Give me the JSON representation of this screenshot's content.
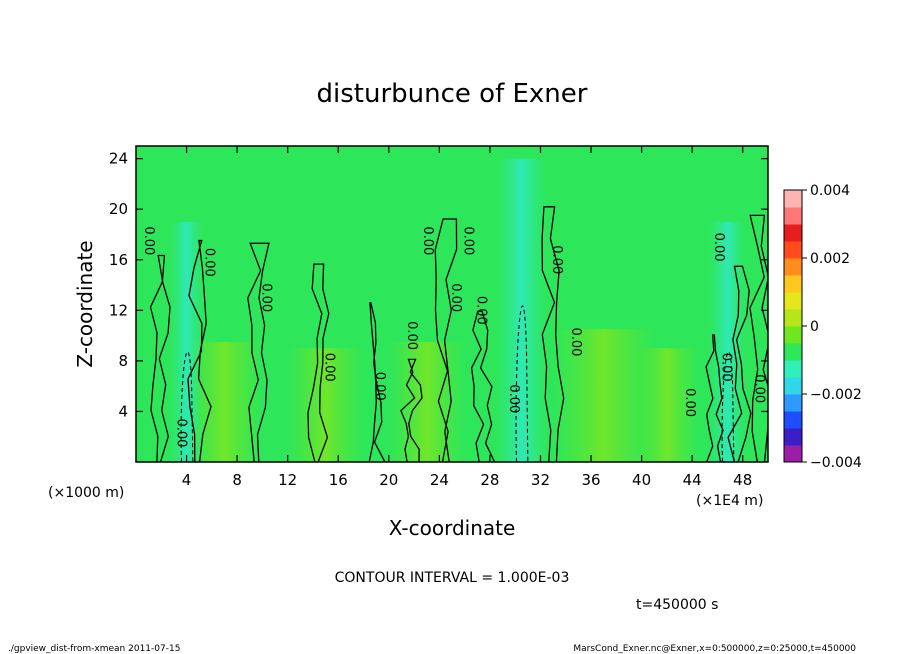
{
  "chart_data": {
    "type": "heatmap",
    "title": "disturbunce of Exner",
    "xlabel": "X-coordinate",
    "ylabel": "Z-coordinate",
    "x_unit_label": "(×1E4 m)",
    "y_unit_label": "(×1000 m)",
    "xlim": [
      0,
      50
    ],
    "ylim": [
      0,
      25
    ],
    "x_ticks": [
      4,
      8,
      12,
      16,
      20,
      24,
      28,
      32,
      36,
      40,
      44,
      48
    ],
    "y_ticks": [
      4,
      8,
      12,
      16,
      20,
      24
    ],
    "colorbar": {
      "range": [
        -0.004,
        0.004
      ],
      "tick_labels": [
        "0.004",
        "0.002",
        "0",
        "−0.002",
        "−0.004"
      ],
      "tick_values": [
        0.004,
        0.002,
        0,
        -0.002,
        -0.004
      ],
      "colors": [
        "#9c1ea6",
        "#3c1ec8",
        "#1e4cff",
        "#2e9aff",
        "#2fd8e8",
        "#30f0b8",
        "#2ee65a",
        "#6ee620",
        "#b4e61a",
        "#e6e61e",
        "#ffc81e",
        "#ff8c1e",
        "#ff4b1e",
        "#e61e1e",
        "#ff7878",
        "#ffb4b4"
      ]
    },
    "contour_interval_text": "CONTOUR INTERVAL = 1.000E-03",
    "contour_label": "0.00",
    "contour_label_positions": [
      {
        "x": 0.7,
        "z": 17.5
      },
      {
        "x": 5.5,
        "z": 15.8
      },
      {
        "x": 10.0,
        "z": 13.0
      },
      {
        "x": 15.0,
        "z": 7.5
      },
      {
        "x": 19.0,
        "z": 6.0
      },
      {
        "x": 21.5,
        "z": 10.0
      },
      {
        "x": 22.8,
        "z": 17.5
      },
      {
        "x": 25.0,
        "z": 13.0
      },
      {
        "x": 26.0,
        "z": 17.5
      },
      {
        "x": 27.0,
        "z": 12.0
      },
      {
        "x": 29.6,
        "z": 5.0
      },
      {
        "x": 33.0,
        "z": 16.0
      },
      {
        "x": 34.5,
        "z": 9.5
      },
      {
        "x": 43.5,
        "z": 4.7
      },
      {
        "x": 45.8,
        "z": 17.0
      },
      {
        "x": 46.4,
        "z": 7.5
      },
      {
        "x": 49.0,
        "z": 5.8
      },
      {
        "x": 3.3,
        "z": 2.3
      }
    ],
    "negative_regions": [
      {
        "x_center": 4.0,
        "x_halfwidth": 1.3,
        "z_max": 19.0
      },
      {
        "x_center": 30.5,
        "x_halfwidth": 2.0,
        "z_max": 24.0
      },
      {
        "x_center": 46.8,
        "x_halfwidth": 1.5,
        "z_max": 19.0
      }
    ],
    "positive_regions": [
      {
        "x_center": 7.0,
        "x_halfwidth": 3.0,
        "z_max": 9.5
      },
      {
        "x_center": 15.0,
        "x_halfwidth": 3.0,
        "z_max": 9.0
      },
      {
        "x_center": 23.0,
        "x_halfwidth": 3.0,
        "z_max": 9.5
      },
      {
        "x_center": 37.0,
        "x_halfwidth": 4.0,
        "z_max": 10.5
      },
      {
        "x_center": 42.0,
        "x_halfwidth": 2.5,
        "z_max": 9.0
      }
    ],
    "grid": false
  },
  "time_label": "t=450000 s",
  "footer_left": "./gpview_dist-from-xmean  2011-07-15",
  "footer_right": "MarsCond_Exner.nc@Exner,x=0:500000,z=0:25000,t=450000"
}
